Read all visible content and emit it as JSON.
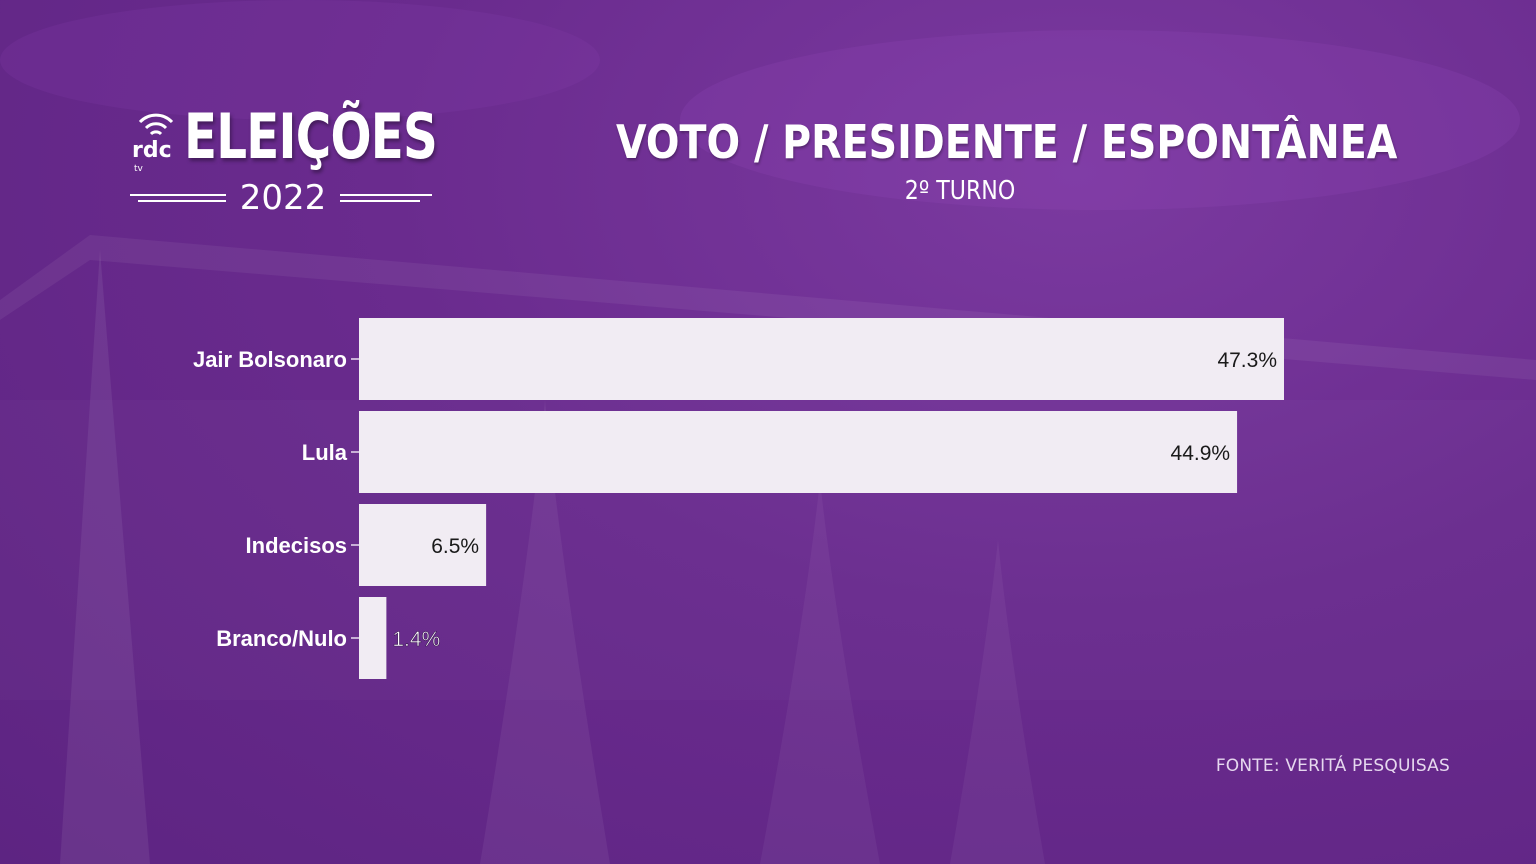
{
  "header": {
    "logo_title": "ELEIÇÕES",
    "logo_year": "2022",
    "logo_brand": "rdc",
    "logo_brand_sub": "tv",
    "title": "VOTO / PRESIDENTE / ESPONTÂNEA",
    "subtitle": "2º TURNO"
  },
  "footer": {
    "source": "FONTE: VERITÁ PESQUISAS"
  },
  "colors": {
    "background": "#6a2b8e",
    "bar": "#f1ecf3",
    "text": "#ffffff",
    "value_text": "#1a1a1a"
  },
  "chart_data": {
    "type": "bar",
    "orientation": "horizontal",
    "categories": [
      "Jair Bolsonaro",
      "Lula",
      "Indecisos",
      "Branco/Nulo"
    ],
    "values": [
      47.3,
      44.9,
      6.5,
      1.4
    ],
    "value_labels": [
      "47.3%",
      "44.9%",
      "6.5%",
      "1.4%"
    ],
    "title": "VOTO / PRESIDENTE / ESPONTÂNEA",
    "subtitle": "2º TURNO",
    "xlabel": "",
    "ylabel": "",
    "xlim": [
      0,
      47.3
    ],
    "grid": false,
    "legend": "none"
  }
}
